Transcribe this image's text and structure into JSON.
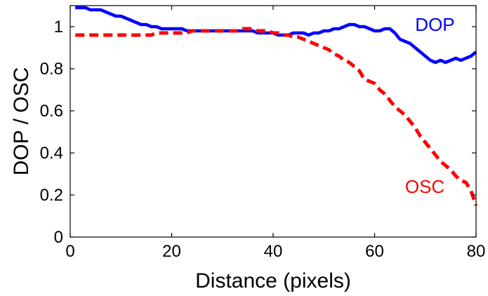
{
  "chart_data": {
    "type": "line",
    "title": "",
    "xlabel": "Distance (pixels)",
    "ylabel": "DOP / OSC",
    "xlim": [
      0,
      80
    ],
    "ylim": [
      0,
      1.1
    ],
    "xticks": [
      0,
      20,
      40,
      60,
      80
    ],
    "xtick_labels": [
      "0",
      "20",
      "40",
      "60",
      "80"
    ],
    "yticks": [
      0,
      0.2,
      0.4,
      0.6,
      0.8,
      1
    ],
    "ytick_labels": [
      "0",
      "0.2",
      "0.4",
      "0.6",
      "0.8",
      "1"
    ],
    "grid": false,
    "series": [
      {
        "name": "DOP",
        "color": "#0000ff",
        "style": "solid",
        "x": [
          1,
          2,
          3,
          4,
          5,
          6,
          7,
          8,
          9,
          10,
          11,
          12,
          13,
          14,
          15,
          16,
          17,
          18,
          19,
          20,
          21,
          22,
          23,
          24,
          25,
          26,
          27,
          28,
          29,
          30,
          31,
          32,
          33,
          34,
          35,
          36,
          37,
          38,
          39,
          40,
          41,
          42,
          43,
          44,
          45,
          46,
          47,
          48,
          49,
          50,
          51,
          52,
          53,
          54,
          55,
          56,
          57,
          58,
          59,
          60,
          61,
          62,
          63,
          64,
          65,
          66,
          67,
          68,
          69,
          70,
          71,
          72,
          73,
          74,
          75,
          76,
          77,
          78,
          79,
          80
        ],
        "values": [
          1.09,
          1.09,
          1.09,
          1.08,
          1.08,
          1.08,
          1.07,
          1.06,
          1.05,
          1.05,
          1.04,
          1.03,
          1.02,
          1.01,
          1.01,
          1.0,
          1.0,
          0.99,
          0.99,
          0.99,
          0.99,
          0.99,
          0.98,
          0.98,
          0.98,
          0.98,
          0.98,
          0.98,
          0.98,
          0.98,
          0.98,
          0.98,
          0.98,
          0.98,
          0.98,
          0.98,
          0.97,
          0.97,
          0.97,
          0.97,
          0.96,
          0.96,
          0.96,
          0.97,
          0.97,
          0.97,
          0.96,
          0.97,
          0.97,
          0.98,
          0.98,
          0.99,
          0.99,
          1.0,
          1.01,
          1.01,
          1.0,
          1.0,
          0.99,
          0.98,
          0.98,
          0.99,
          0.99,
          0.97,
          0.94,
          0.93,
          0.92,
          0.9,
          0.88,
          0.86,
          0.84,
          0.83,
          0.84,
          0.83,
          0.84,
          0.85,
          0.84,
          0.85,
          0.86,
          0.88
        ]
      },
      {
        "name": "OSC",
        "color": "#ff0000",
        "style": "dashed",
        "x": [
          1,
          2,
          3,
          4,
          5,
          6,
          7,
          8,
          9,
          10,
          11,
          12,
          13,
          14,
          15,
          16,
          17,
          18,
          19,
          20,
          21,
          22,
          23,
          24,
          25,
          26,
          27,
          28,
          29,
          30,
          31,
          32,
          33,
          34,
          35,
          36,
          37,
          38,
          39,
          40,
          41,
          42,
          43,
          44,
          45,
          46,
          47,
          48,
          49,
          50,
          51,
          52,
          53,
          54,
          55,
          56,
          57,
          58,
          59,
          60,
          61,
          62,
          63,
          64,
          65,
          66,
          67,
          68,
          69,
          70,
          71,
          72,
          73,
          74,
          75,
          76,
          77,
          78,
          79,
          80
        ],
        "values": [
          0.96,
          0.96,
          0.96,
          0.96,
          0.96,
          0.96,
          0.96,
          0.96,
          0.96,
          0.96,
          0.96,
          0.96,
          0.96,
          0.96,
          0.96,
          0.96,
          0.97,
          0.97,
          0.97,
          0.97,
          0.97,
          0.97,
          0.97,
          0.98,
          0.98,
          0.98,
          0.98,
          0.98,
          0.98,
          0.98,
          0.98,
          0.98,
          0.98,
          0.99,
          0.99,
          0.99,
          0.98,
          0.98,
          0.98,
          0.97,
          0.97,
          0.96,
          0.96,
          0.95,
          0.95,
          0.94,
          0.93,
          0.92,
          0.91,
          0.9,
          0.89,
          0.87,
          0.86,
          0.84,
          0.83,
          0.81,
          0.79,
          0.75,
          0.74,
          0.73,
          0.7,
          0.68,
          0.65,
          0.62,
          0.6,
          0.58,
          0.55,
          0.52,
          0.48,
          0.45,
          0.42,
          0.39,
          0.36,
          0.34,
          0.32,
          0.29,
          0.27,
          0.26,
          0.22,
          0.15
        ]
      }
    ],
    "annotations": [
      {
        "text": "DOP",
        "color": "#0000ff",
        "x": 68,
        "y": 0.98
      },
      {
        "text": "OSC",
        "color": "#ff0000",
        "x": 66,
        "y": 0.21
      }
    ]
  }
}
